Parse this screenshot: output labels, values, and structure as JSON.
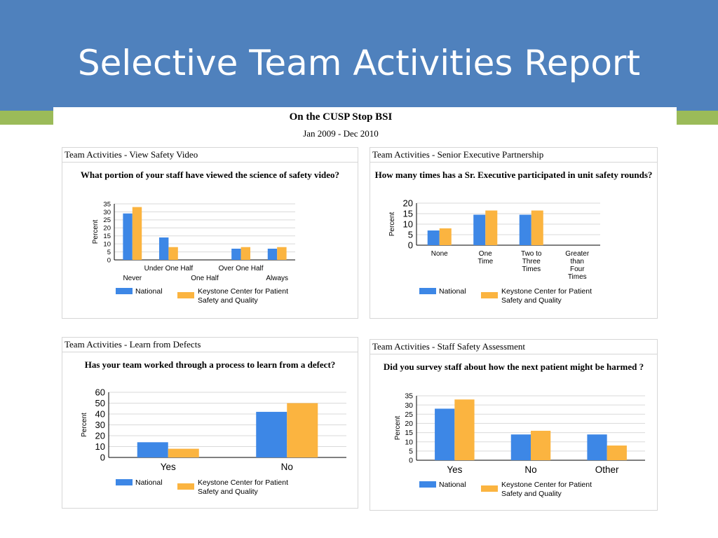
{
  "slide": {
    "title": "Selective Team Activities Report"
  },
  "report": {
    "title": "On the CUSP Stop BSI",
    "dates": "Jan 2009 - Dec 2010"
  },
  "colors": {
    "header": "#4f81bd",
    "accent_band": "#9bbb59",
    "national": "#3d87e6",
    "keystone": "#fbb440"
  },
  "legend": {
    "national": "National",
    "keystone_line1": "Keystone Center for Patient",
    "keystone_line2": "Safety and Quality"
  },
  "chart_data": [
    {
      "type": "bar",
      "panel_title": "Team Activities - View Safety Video",
      "question": "What portion of your staff have viewed the science of safety video?",
      "ylabel": "Percent",
      "ylim": [
        0,
        35
      ],
      "yticks": [
        0,
        5,
        10,
        15,
        20,
        25,
        30,
        35
      ],
      "categories": [
        "Never",
        "Under One Half",
        "One Half",
        "Over One Half",
        "Always"
      ],
      "staggered_labels": true,
      "series": [
        {
          "name": "National",
          "values": [
            29,
            14,
            0,
            7,
            7
          ]
        },
        {
          "name": "Keystone Center for Patient Safety and Quality",
          "values": [
            33,
            8,
            0,
            8,
            8
          ]
        }
      ],
      "legend_position": "bottom"
    },
    {
      "type": "bar",
      "panel_title": "Team Activities - Senior Executive Partnership",
      "question": "How many times has a Sr. Executive participated in unit safety rounds?",
      "ylabel": "Percent",
      "ylim": [
        0,
        20
      ],
      "yticks": [
        0,
        5,
        10,
        15,
        20
      ],
      "categories": [
        "None",
        "One Time",
        "Two to Three Times",
        "Greater than Four Times"
      ],
      "category_lines": [
        [
          "None"
        ],
        [
          "One",
          "Time"
        ],
        [
          "Two to",
          "Three",
          "Times"
        ],
        [
          "Greater",
          "than",
          "Four",
          "Times"
        ]
      ],
      "series": [
        {
          "name": "National",
          "values": [
            7,
            14.5,
            14.5,
            0
          ]
        },
        {
          "name": "Keystone Center for Patient Safety and Quality",
          "values": [
            8,
            16.5,
            16.5,
            0
          ]
        }
      ],
      "legend_position": "bottom"
    },
    {
      "type": "bar",
      "panel_title": "Team Activities - Learn from Defects",
      "question": "Has your team worked through a process to learn from a defect?",
      "ylabel": "Percent",
      "ylim": [
        0,
        60
      ],
      "yticks": [
        0,
        10,
        20,
        30,
        40,
        50,
        60
      ],
      "categories": [
        "Yes",
        "No"
      ],
      "series": [
        {
          "name": "National",
          "values": [
            14,
            42
          ]
        },
        {
          "name": "Keystone Center for Patient Safety and Quality",
          "values": [
            8,
            50
          ]
        }
      ],
      "legend_position": "bottom"
    },
    {
      "type": "bar",
      "panel_title": "Team Activities - Staff Safety Assessment",
      "question": "Did you survey staff about how the next patient might be harmed ?",
      "ylabel": "Percent",
      "ylim": [
        0,
        35
      ],
      "yticks": [
        0,
        5,
        10,
        15,
        20,
        25,
        30,
        35
      ],
      "categories": [
        "Yes",
        "No",
        "Other"
      ],
      "series": [
        {
          "name": "National",
          "values": [
            28,
            14,
            14
          ]
        },
        {
          "name": "Keystone Center for Patient Safety and Quality",
          "values": [
            33,
            16,
            8
          ]
        }
      ],
      "legend_position": "bottom"
    }
  ]
}
